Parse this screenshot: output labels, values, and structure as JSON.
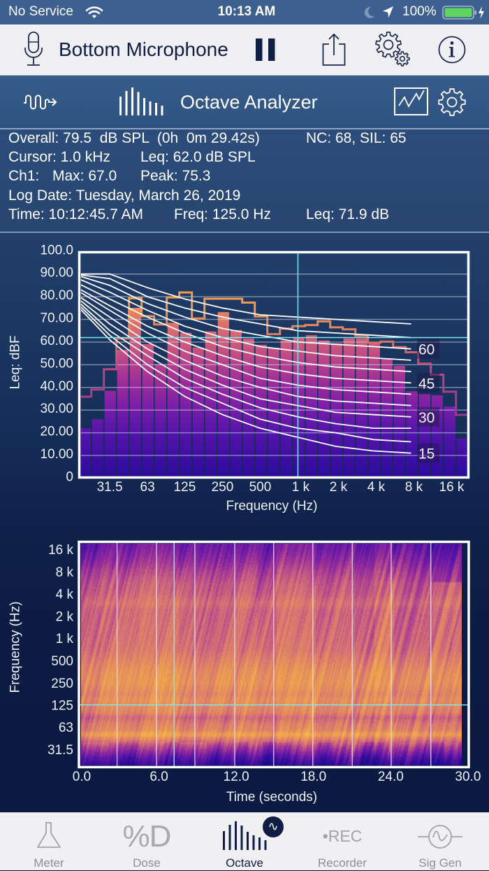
{
  "status_bar": {
    "carrier": "No Service",
    "time": "10:13 AM",
    "battery": "100%",
    "icons": [
      "wifi-icon",
      "moon-icon",
      "location-arrow-icon",
      "battery-icon",
      "charging-bolt-icon"
    ]
  },
  "toolbar": {
    "input_source": "Bottom Microphone",
    "buttons": [
      {
        "name": "pause",
        "icon": "pause-icon"
      },
      {
        "name": "share",
        "icon": "share-icon"
      },
      {
        "name": "settings",
        "icon": "gears-icon"
      },
      {
        "name": "info",
        "icon": "info-icon"
      }
    ]
  },
  "analyzer_header": {
    "title": "Octave Analyzer",
    "left_icon": "waveform-arrow-icon",
    "title_icon": "octave-bars-icon",
    "right_icons": [
      "chart-view-icon",
      "gear-icon"
    ]
  },
  "readout": {
    "overall": "Overall: 79.5  dB SPL  (0h  0m 29.42s)",
    "nc_sil": "NC: 68, SIL: 65",
    "cursor": "Cursor: 1.0 kHz",
    "cursor_leq": "Leq: 62.0 dB SPL",
    "channel": "Ch1:",
    "max": "Max: 67.0",
    "peak": "Peak: 75.3",
    "log_date": "Log Date: Tuesday, March 26, 2019",
    "log_time": "Time: 10:12:45.7 AM",
    "log_freq": "Freq: 125.0 Hz",
    "log_leq": "Leq: 71.9 dB"
  },
  "colors": {
    "status_bar": "#3e6090",
    "toolbar": "#efeff4",
    "header": "#335886",
    "body_top": "#223f6b",
    "body_bottom": "#0b1a42",
    "cursor": "#7fe6ee",
    "max_line_high": "#f4a24a",
    "max_line_low": "#a0388c",
    "active_tab": "#0e1e45",
    "inactive_tab": "#8e8e93",
    "battery": "#5fd35f"
  },
  "chart_data": [
    {
      "type": "bar",
      "title": "",
      "xlabel": "Frequency (Hz)",
      "ylabel": "Leq: dBF",
      "ylim": [
        0,
        100
      ],
      "grid": true,
      "yticks": [
        {
          "v": 100,
          "label": "100.0"
        },
        {
          "v": 90,
          "label": "90.00"
        },
        {
          "v": 80,
          "label": "80.00"
        },
        {
          "v": 70,
          "label": "70.00"
        },
        {
          "v": 60,
          "label": "60.00"
        },
        {
          "v": 50,
          "label": "50.00"
        },
        {
          "v": 40,
          "label": "40.00"
        },
        {
          "v": 30,
          "label": "30.00"
        },
        {
          "v": 20,
          "label": "20.00"
        },
        {
          "v": 10,
          "label": "10.00"
        },
        {
          "v": 0,
          "label": "0"
        }
      ],
      "xticks": [
        {
          "f": 31.5,
          "label": "31.5"
        },
        {
          "f": 63,
          "label": "63"
        },
        {
          "f": 125,
          "label": "125"
        },
        {
          "f": 250,
          "label": "250"
        },
        {
          "f": 500,
          "label": "500"
        },
        {
          "f": 1000,
          "label": "1 k"
        },
        {
          "f": 2000,
          "label": "2 k"
        },
        {
          "f": 4000,
          "label": "4 k"
        },
        {
          "f": 8000,
          "label": "8 k"
        },
        {
          "f": 16000,
          "label": "16 k"
        }
      ],
      "categories": [
        "20",
        "25",
        "31.5",
        "40",
        "50",
        "63",
        "80",
        "100",
        "125",
        "160",
        "200",
        "250",
        "315",
        "400",
        "500",
        "630",
        "800",
        "1k",
        "1.25k",
        "1.6k",
        "2k",
        "2.5k",
        "3.15k",
        "4k",
        "5k",
        "6.3k",
        "8k",
        "10k",
        "12.5k",
        "16k",
        "20k"
      ],
      "series": [
        {
          "name": "Leq",
          "values": [
            22.0,
            25.9,
            38.5,
            56.6,
            75.1,
            59.1,
            50.3,
            68.5,
            64.1,
            57.6,
            64.7,
            73.2,
            65.3,
            61.5,
            58.8,
            57.5,
            60.7,
            62.0,
            63.0,
            60.7,
            59.4,
            61.6,
            61.6,
            59.7,
            52.9,
            49.5,
            38.3,
            37.0,
            36.5,
            31.6,
            17.5
          ]
        },
        {
          "name": "Max",
          "values": [
            35.9,
            39.1,
            48.0,
            61.6,
            79.3,
            71.4,
            67.8,
            79.7,
            81.9,
            70.4,
            79.1,
            79.1,
            79.1,
            77.4,
            71.3,
            63.5,
            65.9,
            67.0,
            67.5,
            69.1,
            66.5,
            65.6,
            62.8,
            59.7,
            60.2,
            57.8,
            55.5,
            50.5,
            45.6,
            38.1,
            27.9
          ]
        }
      ],
      "nc_curves": {
        "freqs": [
          16,
          31.5,
          63,
          125,
          250,
          500,
          1000,
          2000,
          4000,
          8000
        ],
        "curves": [
          {
            "name": "NC-15",
            "label": "15",
            "values": [
              78,
              61,
              47,
              36,
              28,
              22,
              18,
              14,
              12,
              11
            ]
          },
          {
            "name": "NC-20",
            "label": "",
            "values": [
              79,
              63,
              50,
              40,
              33,
              26,
              22,
              20,
              17,
              16
            ]
          },
          {
            "name": "NC-25",
            "label": "",
            "values": [
              80,
              65,
              54,
              44,
              37,
              31,
              27,
              24,
              22,
              22
            ]
          },
          {
            "name": "NC-30",
            "label": "30",
            "values": [
              81,
              68,
              57,
              48,
              41,
              35,
              32,
              29,
              28,
              27
            ]
          },
          {
            "name": "NC-35",
            "label": "",
            "values": [
              82,
              71,
              60,
              52,
              45,
              40,
              36,
              34,
              33,
              32
            ]
          },
          {
            "name": "NC-40",
            "label": "",
            "values": [
              84,
              74,
              64,
              56,
              50,
              44,
              41,
              39,
              38,
              37
            ]
          },
          {
            "name": "NC-45",
            "label": "45",
            "values": [
              85,
              76,
              67,
              60,
              54,
              49,
              46,
              44,
              43,
              42
            ]
          },
          {
            "name": "NC-50",
            "label": "",
            "values": [
              87,
              79,
              71,
              64,
              58,
              54,
              51,
              49,
              48,
              47
            ]
          },
          {
            "name": "NC-55",
            "label": "",
            "values": [
              89,
              82,
              74,
              67,
              62,
              58,
              56,
              54,
              53,
              52
            ]
          },
          {
            "name": "NC-60",
            "label": "60",
            "values": [
              90,
              85,
              77,
              71,
              66,
              63,
              60,
              59,
              58,
              57
            ]
          },
          {
            "name": "NC-65",
            "label": "",
            "values": [
              90,
              88,
              80,
              75,
              71,
              68,
              65,
              64,
              63,
              62
            ]
          },
          {
            "name": "NC-70",
            "label": "",
            "values": [
              90,
              90,
              84,
              79,
              75,
              72,
              71,
              70,
              69,
              68
            ]
          }
        ]
      },
      "cursor": {
        "freq_hz": 1000,
        "level_db": 62.0
      }
    },
    {
      "type": "heatmap",
      "title": "",
      "xlabel": "Time (seconds)",
      "ylabel": "Frequency (Hz)",
      "xlim": [
        0,
        30
      ],
      "xticks": [
        {
          "v": 0,
          "label": "0.0"
        },
        {
          "v": 6,
          "label": "6.0"
        },
        {
          "v": 12,
          "label": "12.0"
        },
        {
          "v": 18,
          "label": "18.0"
        },
        {
          "v": 24,
          "label": "24.0"
        },
        {
          "v": 30,
          "label": "30.0"
        }
      ],
      "yticks": [
        {
          "f": 16000,
          "label": "16 k"
        },
        {
          "f": 8000,
          "label": "8 k"
        },
        {
          "f": 4000,
          "label": "4 k"
        },
        {
          "f": 2000,
          "label": "2 k"
        },
        {
          "f": 1000,
          "label": "1 k"
        },
        {
          "f": 500,
          "label": "500"
        },
        {
          "f": 250,
          "label": "250"
        },
        {
          "f": 125,
          "label": "125"
        },
        {
          "f": 63,
          "label": "63"
        },
        {
          "f": 31.5,
          "label": "31.5"
        }
      ],
      "duration_s": 29.42,
      "time_markers_s": [
        2.8,
        5.86,
        8.84,
        11.94,
        14.96,
        18.0,
        21.07,
        24.09,
        27.17
      ],
      "cursor": {
        "time_s": 7.23,
        "freq_hz": 125
      },
      "colormap": "plasma",
      "intensity_profile": [
        {
          "f": 20000,
          "v": 0.3
        },
        {
          "f": 16000,
          "v": 0.33
        },
        {
          "f": 11300,
          "v": 0.41
        },
        {
          "f": 8000,
          "v": 0.5
        },
        {
          "f": 5600,
          "v": 0.57
        },
        {
          "f": 4000,
          "v": 0.6
        },
        {
          "f": 3000,
          "v": 0.66
        },
        {
          "f": 2400,
          "v": 0.62
        },
        {
          "f": 2000,
          "v": 0.62
        },
        {
          "f": 1000,
          "v": 0.64
        },
        {
          "f": 700,
          "v": 0.66
        },
        {
          "f": 500,
          "v": 0.72
        },
        {
          "f": 350,
          "v": 0.78
        },
        {
          "f": 250,
          "v": 0.8
        },
        {
          "f": 175,
          "v": 0.74
        },
        {
          "f": 150,
          "v": 0.78
        },
        {
          "f": 125,
          "v": 0.76
        },
        {
          "f": 100,
          "v": 0.72
        },
        {
          "f": 85,
          "v": 0.62
        },
        {
          "f": 70,
          "v": 0.7
        },
        {
          "f": 58,
          "v": 0.74
        },
        {
          "f": 50,
          "v": 0.86
        },
        {
          "f": 43,
          "v": 0.7
        },
        {
          "f": 36,
          "v": 0.52
        },
        {
          "f": 30,
          "v": 0.38
        },
        {
          "f": 25,
          "v": 0.24
        },
        {
          "f": 20,
          "v": 0.1
        }
      ]
    }
  ],
  "tab_bar": {
    "tabs": [
      {
        "label": "Meter",
        "icon": "flask-icon",
        "active": false
      },
      {
        "label": "Dose",
        "icon": "percent-d-icon",
        "glyph": "%D",
        "active": false
      },
      {
        "label": "Octave",
        "icon": "octave-bars-icon",
        "badge": "∿",
        "active": true
      },
      {
        "label": "Recorder",
        "icon": "rec-icon",
        "glyph": "•REC",
        "active": false
      },
      {
        "label": "Sig Gen",
        "icon": "sine-generator-icon",
        "active": false
      }
    ]
  }
}
